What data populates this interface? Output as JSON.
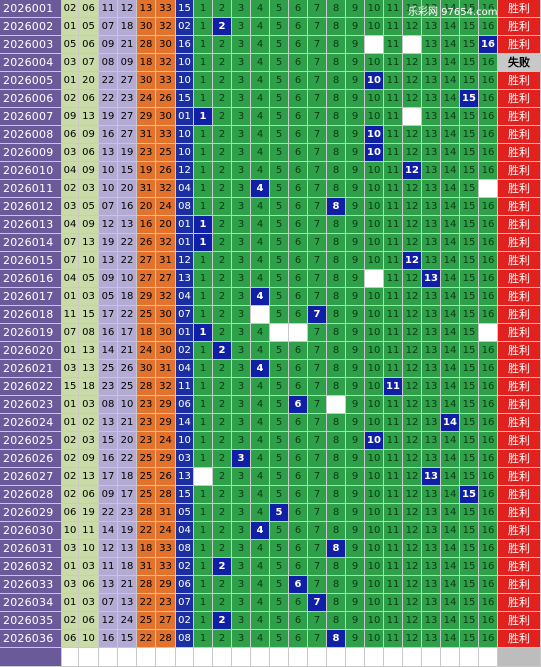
{
  "watermark": "乐彩网 97654.com",
  "columns": {
    "positions": [
      "1",
      "2",
      "3",
      "4",
      "5",
      "6",
      "7",
      "8",
      "9",
      "10",
      "11",
      "12",
      "13",
      "14",
      "15",
      "16"
    ]
  },
  "status_labels": {
    "win": "胜利",
    "lose": "失败"
  },
  "colors": {
    "issue": "#6a5a9a",
    "sage": "#c9dca8",
    "lavender": "#b4abd4",
    "orange": "#e3722c",
    "olive": "#a9a74c",
    "blue": "#1b2fa3",
    "green": "#2ea04a",
    "hit": "#0f1fa6",
    "win": "#e2201e",
    "lose": "#c8c8c8"
  },
  "rows": [
    {
      "issue": "2026001",
      "reds": [
        "02",
        "06",
        "11",
        "12",
        "13",
        "33"
      ],
      "blue": "15",
      "hits": [],
      "blanks": [],
      "status": "win"
    },
    {
      "issue": "2026002",
      "reds": [
        "01",
        "05",
        "07",
        "18",
        "30",
        "32"
      ],
      "blue": "02",
      "hits": [
        2
      ],
      "blanks": [],
      "status": "win"
    },
    {
      "issue": "2026003",
      "reds": [
        "05",
        "06",
        "09",
        "21",
        "28",
        "30"
      ],
      "blue": "16",
      "hits": [
        16
      ],
      "blanks": [
        10,
        12
      ],
      "status": "win"
    },
    {
      "issue": "2026004",
      "reds": [
        "03",
        "07",
        "08",
        "09",
        "18",
        "32"
      ],
      "blue": "10",
      "hits": [],
      "blanks": [],
      "status": "lose"
    },
    {
      "issue": "2026005",
      "reds": [
        "01",
        "20",
        "22",
        "27",
        "30",
        "33"
      ],
      "blue": "10",
      "hits": [
        10
      ],
      "blanks": [],
      "status": "win"
    },
    {
      "issue": "2026006",
      "reds": [
        "02",
        "06",
        "22",
        "23",
        "24",
        "26"
      ],
      "blue": "15",
      "hits": [
        15
      ],
      "blanks": [],
      "status": "win"
    },
    {
      "issue": "2026007",
      "reds": [
        "09",
        "13",
        "19",
        "27",
        "29",
        "30"
      ],
      "blue": "01",
      "hits": [
        1
      ],
      "blanks": [
        12
      ],
      "status": "win"
    },
    {
      "issue": "2026008",
      "reds": [
        "06",
        "09",
        "16",
        "27",
        "31",
        "33"
      ],
      "blue": "10",
      "hits": [
        10
      ],
      "blanks": [],
      "status": "win"
    },
    {
      "issue": "2026009",
      "reds": [
        "03",
        "06",
        "13",
        "19",
        "23",
        "25"
      ],
      "blue": "10",
      "hits": [
        10
      ],
      "blanks": [],
      "status": "win"
    },
    {
      "issue": "2026010",
      "reds": [
        "04",
        "09",
        "10",
        "15",
        "19",
        "26"
      ],
      "blue": "12",
      "hits": [
        12
      ],
      "blanks": [],
      "status": "win"
    },
    {
      "issue": "2026011",
      "reds": [
        "02",
        "03",
        "10",
        "20",
        "31",
        "32"
      ],
      "blue": "04",
      "hits": [
        4
      ],
      "blanks": [
        16
      ],
      "status": "win"
    },
    {
      "issue": "2026012",
      "reds": [
        "03",
        "05",
        "07",
        "16",
        "20",
        "24"
      ],
      "blue": "08",
      "hits": [
        8
      ],
      "blanks": [],
      "status": "win"
    },
    {
      "issue": "2026013",
      "reds": [
        "04",
        "09",
        "12",
        "13",
        "16",
        "20"
      ],
      "blue": "01",
      "hits": [
        1
      ],
      "blanks": [],
      "status": "win"
    },
    {
      "issue": "2026014",
      "reds": [
        "07",
        "13",
        "19",
        "22",
        "26",
        "32"
      ],
      "blue": "01",
      "hits": [
        1
      ],
      "blanks": [],
      "status": "win"
    },
    {
      "issue": "2026015",
      "reds": [
        "07",
        "10",
        "13",
        "22",
        "27",
        "31"
      ],
      "blue": "12",
      "hits": [
        12
      ],
      "blanks": [],
      "status": "win"
    },
    {
      "issue": "2026016",
      "reds": [
        "04",
        "05",
        "09",
        "10",
        "27",
        "27"
      ],
      "blue": "13",
      "hits": [
        13
      ],
      "blanks": [
        10
      ],
      "status": "win"
    },
    {
      "issue": "2026017",
      "reds": [
        "01",
        "03",
        "05",
        "18",
        "29",
        "32"
      ],
      "blue": "04",
      "hits": [
        4
      ],
      "blanks": [],
      "status": "win"
    },
    {
      "issue": "2026018",
      "reds": [
        "11",
        "15",
        "17",
        "22",
        "25",
        "30"
      ],
      "blue": "07",
      "hits": [
        7
      ],
      "blanks": [
        4
      ],
      "status": "win"
    },
    {
      "issue": "2026019",
      "reds": [
        "07",
        "08",
        "16",
        "17",
        "18",
        "30"
      ],
      "blue": "01",
      "hits": [
        1
      ],
      "blanks": [
        5,
        6,
        16
      ],
      "status": "win"
    },
    {
      "issue": "2026020",
      "reds": [
        "01",
        "13",
        "14",
        "21",
        "24",
        "30"
      ],
      "blue": "02",
      "hits": [
        2
      ],
      "blanks": [],
      "status": "win"
    },
    {
      "issue": "2026021",
      "reds": [
        "03",
        "13",
        "25",
        "26",
        "30",
        "31"
      ],
      "blue": "04",
      "hits": [
        4
      ],
      "blanks": [],
      "status": "win"
    },
    {
      "issue": "2026022",
      "reds": [
        "15",
        "18",
        "23",
        "25",
        "28",
        "32"
      ],
      "blue": "11",
      "hits": [
        11
      ],
      "blanks": [],
      "status": "win"
    },
    {
      "issue": "2026023",
      "reds": [
        "01",
        "03",
        "08",
        "10",
        "23",
        "29"
      ],
      "blue": "06",
      "hits": [
        6
      ],
      "blanks": [
        8
      ],
      "status": "win"
    },
    {
      "issue": "2026024",
      "reds": [
        "01",
        "02",
        "13",
        "21",
        "23",
        "29"
      ],
      "blue": "14",
      "hits": [
        14
      ],
      "blanks": [],
      "status": "win"
    },
    {
      "issue": "2026025",
      "reds": [
        "02",
        "03",
        "15",
        "20",
        "23",
        "24"
      ],
      "blue": "10",
      "hits": [
        10
      ],
      "blanks": [],
      "status": "win"
    },
    {
      "issue": "2026026",
      "reds": [
        "02",
        "09",
        "16",
        "22",
        "25",
        "29"
      ],
      "blue": "03",
      "hits": [
        3
      ],
      "blanks": [],
      "status": "win"
    },
    {
      "issue": "2026027",
      "reds": [
        "02",
        "13",
        "17",
        "18",
        "25",
        "26"
      ],
      "blue": "13",
      "hits": [
        13
      ],
      "blanks": [
        1
      ],
      "status": "win"
    },
    {
      "issue": "2026028",
      "reds": [
        "02",
        "06",
        "09",
        "17",
        "25",
        "28"
      ],
      "blue": "15",
      "hits": [
        15
      ],
      "blanks": [],
      "status": "win"
    },
    {
      "issue": "2026029",
      "reds": [
        "06",
        "19",
        "22",
        "23",
        "28",
        "31"
      ],
      "blue": "05",
      "hits": [
        5
      ],
      "blanks": [],
      "status": "win"
    },
    {
      "issue": "2026030",
      "reds": [
        "10",
        "11",
        "14",
        "19",
        "22",
        "24"
      ],
      "blue": "04",
      "hits": [
        4
      ],
      "blanks": [],
      "status": "win"
    },
    {
      "issue": "2026031",
      "reds": [
        "03",
        "10",
        "12",
        "13",
        "18",
        "33"
      ],
      "blue": "08",
      "hits": [
        8
      ],
      "blanks": [],
      "status": "win"
    },
    {
      "issue": "2026032",
      "reds": [
        "01",
        "03",
        "11",
        "18",
        "31",
        "33"
      ],
      "blue": "02",
      "hits": [
        2
      ],
      "blanks": [],
      "status": "win"
    },
    {
      "issue": "2026033",
      "reds": [
        "03",
        "06",
        "13",
        "21",
        "28",
        "29"
      ],
      "blue": "06",
      "hits": [
        6
      ],
      "blanks": [],
      "status": "win"
    },
    {
      "issue": "2026034",
      "reds": [
        "01",
        "03",
        "07",
        "13",
        "22",
        "23"
      ],
      "blue": "07",
      "hits": [
        7
      ],
      "blanks": [],
      "status": "win"
    },
    {
      "issue": "2026035",
      "reds": [
        "02",
        "06",
        "12",
        "24",
        "25",
        "27"
      ],
      "blue": "02",
      "hits": [
        2
      ],
      "blanks": [],
      "status": "win"
    },
    {
      "issue": "2026036",
      "reds": [
        "06",
        "10",
        "16",
        "15",
        "22",
        "28"
      ],
      "blue": "08",
      "hits": [
        8
      ],
      "blanks": [],
      "status": "win"
    }
  ]
}
